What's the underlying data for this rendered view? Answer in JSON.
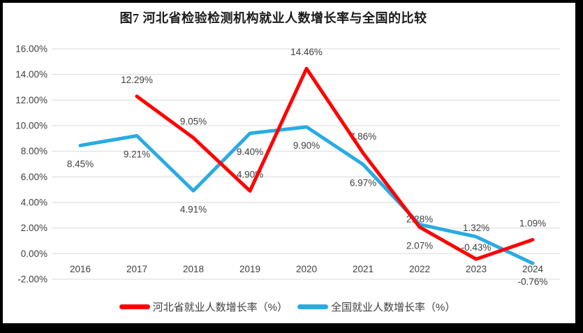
{
  "title": "图7 河北省检验检测机构就业人数增长率与全国的比较",
  "chart_data": {
    "type": "line",
    "x": [
      "2016",
      "2017",
      "2018",
      "2019",
      "2020",
      "2021",
      "2022",
      "2023",
      "2024"
    ],
    "ylim": [
      -2,
      16
    ],
    "ytick_step": 2,
    "ytick_labels": [
      "16.00%",
      "14.00%",
      "12.00%",
      "10.00%",
      "8.00%",
      "6.00%",
      "4.00%",
      "2.00%",
      "0.00%",
      "-2.00%"
    ],
    "grid": true,
    "grid_color": "#D9D9D9",
    "text_color": "#404040",
    "legend_position": "bottom",
    "series": [
      {
        "id": "hebei",
        "name": "河北省就业人数增长率（%）",
        "color": "#FF0000",
        "values": [
          null,
          12.29,
          9.05,
          4.9,
          14.46,
          7.86,
          2.07,
          -0.43,
          1.09
        ],
        "labels": [
          "",
          "12.29%",
          "9.05%",
          "4.90%",
          "14.46%",
          "7.86%",
          "2.07%",
          "-0.43%",
          "1.09%"
        ],
        "label_side": [
          "",
          "above",
          "above",
          "above",
          "above",
          "above",
          "below",
          "above",
          "above"
        ],
        "label_dy": [
          0,
          0,
          0,
          0,
          0,
          0,
          0,
          7,
          0
        ]
      },
      {
        "id": "national",
        "name": "全国就业人数增长率（%）",
        "color": "#29ABE2",
        "values": [
          8.45,
          9.21,
          4.91,
          9.4,
          9.9,
          6.97,
          2.28,
          1.32,
          -0.76
        ],
        "labels": [
          "8.45%",
          "9.21%",
          "4.91%",
          "9.40%",
          "9.90%",
          "6.97%",
          "2.28%",
          "1.32%",
          "-0.76%"
        ],
        "label_side": [
          "below",
          "below",
          "below",
          "below",
          "below",
          "below",
          "above",
          "above",
          "below"
        ],
        "label_dy": [
          0,
          0,
          0,
          0,
          0,
          0,
          16,
          11,
          0
        ]
      }
    ]
  }
}
